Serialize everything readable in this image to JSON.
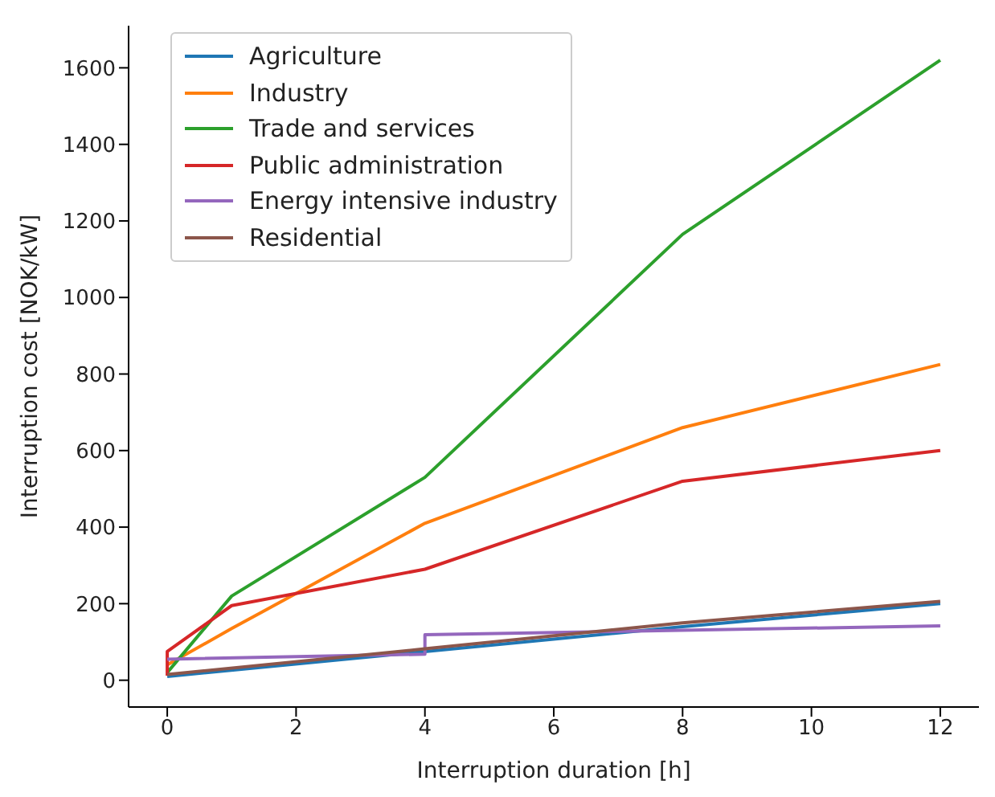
{
  "chart_data": {
    "type": "line",
    "xlabel": "Interruption duration [h]",
    "ylabel": "Interruption cost [NOK/kW]",
    "xlim": [
      -0.6,
      12.6
    ],
    "ylim": [
      -70,
      1710
    ],
    "xticks": [
      0,
      2,
      4,
      6,
      8,
      10,
      12
    ],
    "yticks": [
      0,
      200,
      400,
      600,
      800,
      1000,
      1200,
      1400,
      1600
    ],
    "grid": false,
    "legend": "top left",
    "marker": "none",
    "line_style": "solid",
    "series": [
      {
        "name": "Agriculture",
        "color": "#1f77b4",
        "x": [
          0,
          4,
          8,
          12
        ],
        "values": [
          10,
          75,
          140,
          200
        ]
      },
      {
        "name": "Industry",
        "color": "#ff7f0e",
        "x": [
          0,
          1,
          4,
          8,
          12
        ],
        "values": [
          40,
          135,
          410,
          660,
          825
        ]
      },
      {
        "name": "Trade and services",
        "color": "#2ca02c",
        "x": [
          0,
          1,
          4,
          8,
          12
        ],
        "values": [
          20,
          220,
          530,
          1165,
          1620
        ]
      },
      {
        "name": "Public administration",
        "color": "#d62728",
        "x": [
          0,
          0,
          1,
          4,
          8,
          12
        ],
        "values": [
          12,
          75,
          195,
          290,
          520,
          600
        ]
      },
      {
        "name": "Energy intensive industry",
        "color": "#9467bd",
        "x": [
          0,
          4,
          4,
          12
        ],
        "values": [
          55,
          68,
          119,
          142
        ]
      },
      {
        "name": "Residential",
        "color": "#8c564b",
        "x": [
          0,
          4,
          8,
          12
        ],
        "values": [
          15,
          82,
          150,
          206
        ]
      }
    ]
  }
}
